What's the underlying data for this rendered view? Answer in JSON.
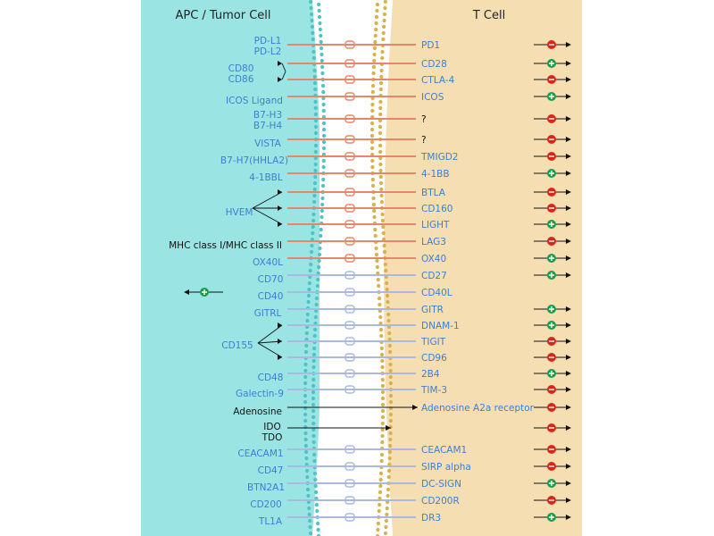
{
  "headers": {
    "left": "APC / Tumor Cell",
    "right": "T Cell"
  },
  "colors": {
    "apc_bg": "#9be4e4",
    "tcell_bg": "#f6deb3",
    "ligand_text": "#3d7fd0",
    "black_text": "#111111",
    "orange_line": "#e4876b",
    "blue_line": "#a9b9e0",
    "inhibit": "#d9261c",
    "stimulate": "#1c9b4a",
    "membrane_left": "#4fc3c3",
    "membrane_right": "#d9b14a"
  },
  "rows": [
    {
      "ligand": [
        "PD-L1",
        "PD-L2"
      ],
      "receptor": "PD1",
      "color": "orange",
      "effect": "inhibit"
    },
    {
      "ligand": [
        "CD80",
        "CD86"
      ],
      "receptor": "CD28",
      "color": "orange",
      "effect": "stimulate"
    },
    {
      "ligand": [],
      "receptor": "CTLA-4",
      "color": "orange",
      "effect": "inhibit"
    },
    {
      "ligand": [
        "ICOS Ligand"
      ],
      "receptor": "ICOS",
      "color": "orange",
      "effect": "stimulate"
    },
    {
      "ligand": [
        "B7-H3",
        "B7-H4"
      ],
      "receptor": "?",
      "color": "orange",
      "effect": "inhibit"
    },
    {
      "ligand": [
        "VISTA"
      ],
      "receptor": "?",
      "color": "orange",
      "effect": "inhibit"
    },
    {
      "ligand": [
        "B7-H7(HHLA2)"
      ],
      "receptor": "TMIGD2",
      "color": "orange",
      "effect": "inhibit"
    },
    {
      "ligand": [
        "4-1BBL"
      ],
      "receptor": "4-1BB",
      "color": "orange",
      "effect": "stimulate"
    },
    {
      "ligand": [],
      "receptor": "BTLA",
      "color": "orange",
      "effect": "inhibit"
    },
    {
      "ligand": [
        "HVEM"
      ],
      "receptor": "CD160",
      "color": "orange",
      "effect": "inhibit"
    },
    {
      "ligand": [],
      "receptor": "LIGHT",
      "color": "orange",
      "effect": "stimulate"
    },
    {
      "ligand": [
        "MHC class I/MHC class II"
      ],
      "receptor": "LAG3",
      "color": "orange",
      "effect": "inhibit"
    },
    {
      "ligand": [
        "OX40L"
      ],
      "receptor": "OX40",
      "color": "orange",
      "effect": "stimulate"
    },
    {
      "ligand": [
        "CD70"
      ],
      "receptor": "CD27",
      "color": "blue",
      "effect": "stimulate"
    },
    {
      "ligand": [
        "CD40"
      ],
      "receptor": "CD40L",
      "color": "blue",
      "effect": "left-stimulate"
    },
    {
      "ligand": [
        "GITRL"
      ],
      "receptor": "GITR",
      "color": "blue",
      "effect": "stimulate"
    },
    {
      "ligand": [],
      "receptor": "DNAM-1",
      "color": "blue",
      "effect": "stimulate"
    },
    {
      "ligand": [
        "CD155"
      ],
      "receptor": "TIGIT",
      "color": "blue",
      "effect": "inhibit"
    },
    {
      "ligand": [],
      "receptor": "CD96",
      "color": "blue",
      "effect": "inhibit"
    },
    {
      "ligand": [
        "CD48"
      ],
      "receptor": "2B4",
      "color": "blue",
      "effect": "stimulate"
    },
    {
      "ligand": [
        "Galectin-9"
      ],
      "receptor": "TIM-3",
      "color": "blue",
      "effect": "inhibit"
    },
    {
      "ligand": [
        "Adenosine"
      ],
      "receptor": "Adenosine A2a receptor",
      "color": "black",
      "effect": "inhibit"
    },
    {
      "ligand": [
        "IDO",
        "TDO"
      ],
      "receptor": "",
      "color": "black",
      "effect": "inhibit"
    },
    {
      "ligand": [
        "CEACAM1"
      ],
      "receptor": "CEACAM1",
      "color": "blue",
      "effect": "inhibit"
    },
    {
      "ligand": [
        "CD47"
      ],
      "receptor": "SIRP alpha",
      "color": "blue",
      "effect": "inhibit"
    },
    {
      "ligand": [
        "BTN2A1"
      ],
      "receptor": "DC-SIGN",
      "color": "blue",
      "effect": "stimulate"
    },
    {
      "ligand": [
        "CD200"
      ],
      "receptor": "CD200R",
      "color": "blue",
      "effect": "inhibit"
    },
    {
      "ligand": [
        "TL1A"
      ],
      "receptor": "DR3",
      "color": "blue",
      "effect": "stimulate"
    }
  ]
}
